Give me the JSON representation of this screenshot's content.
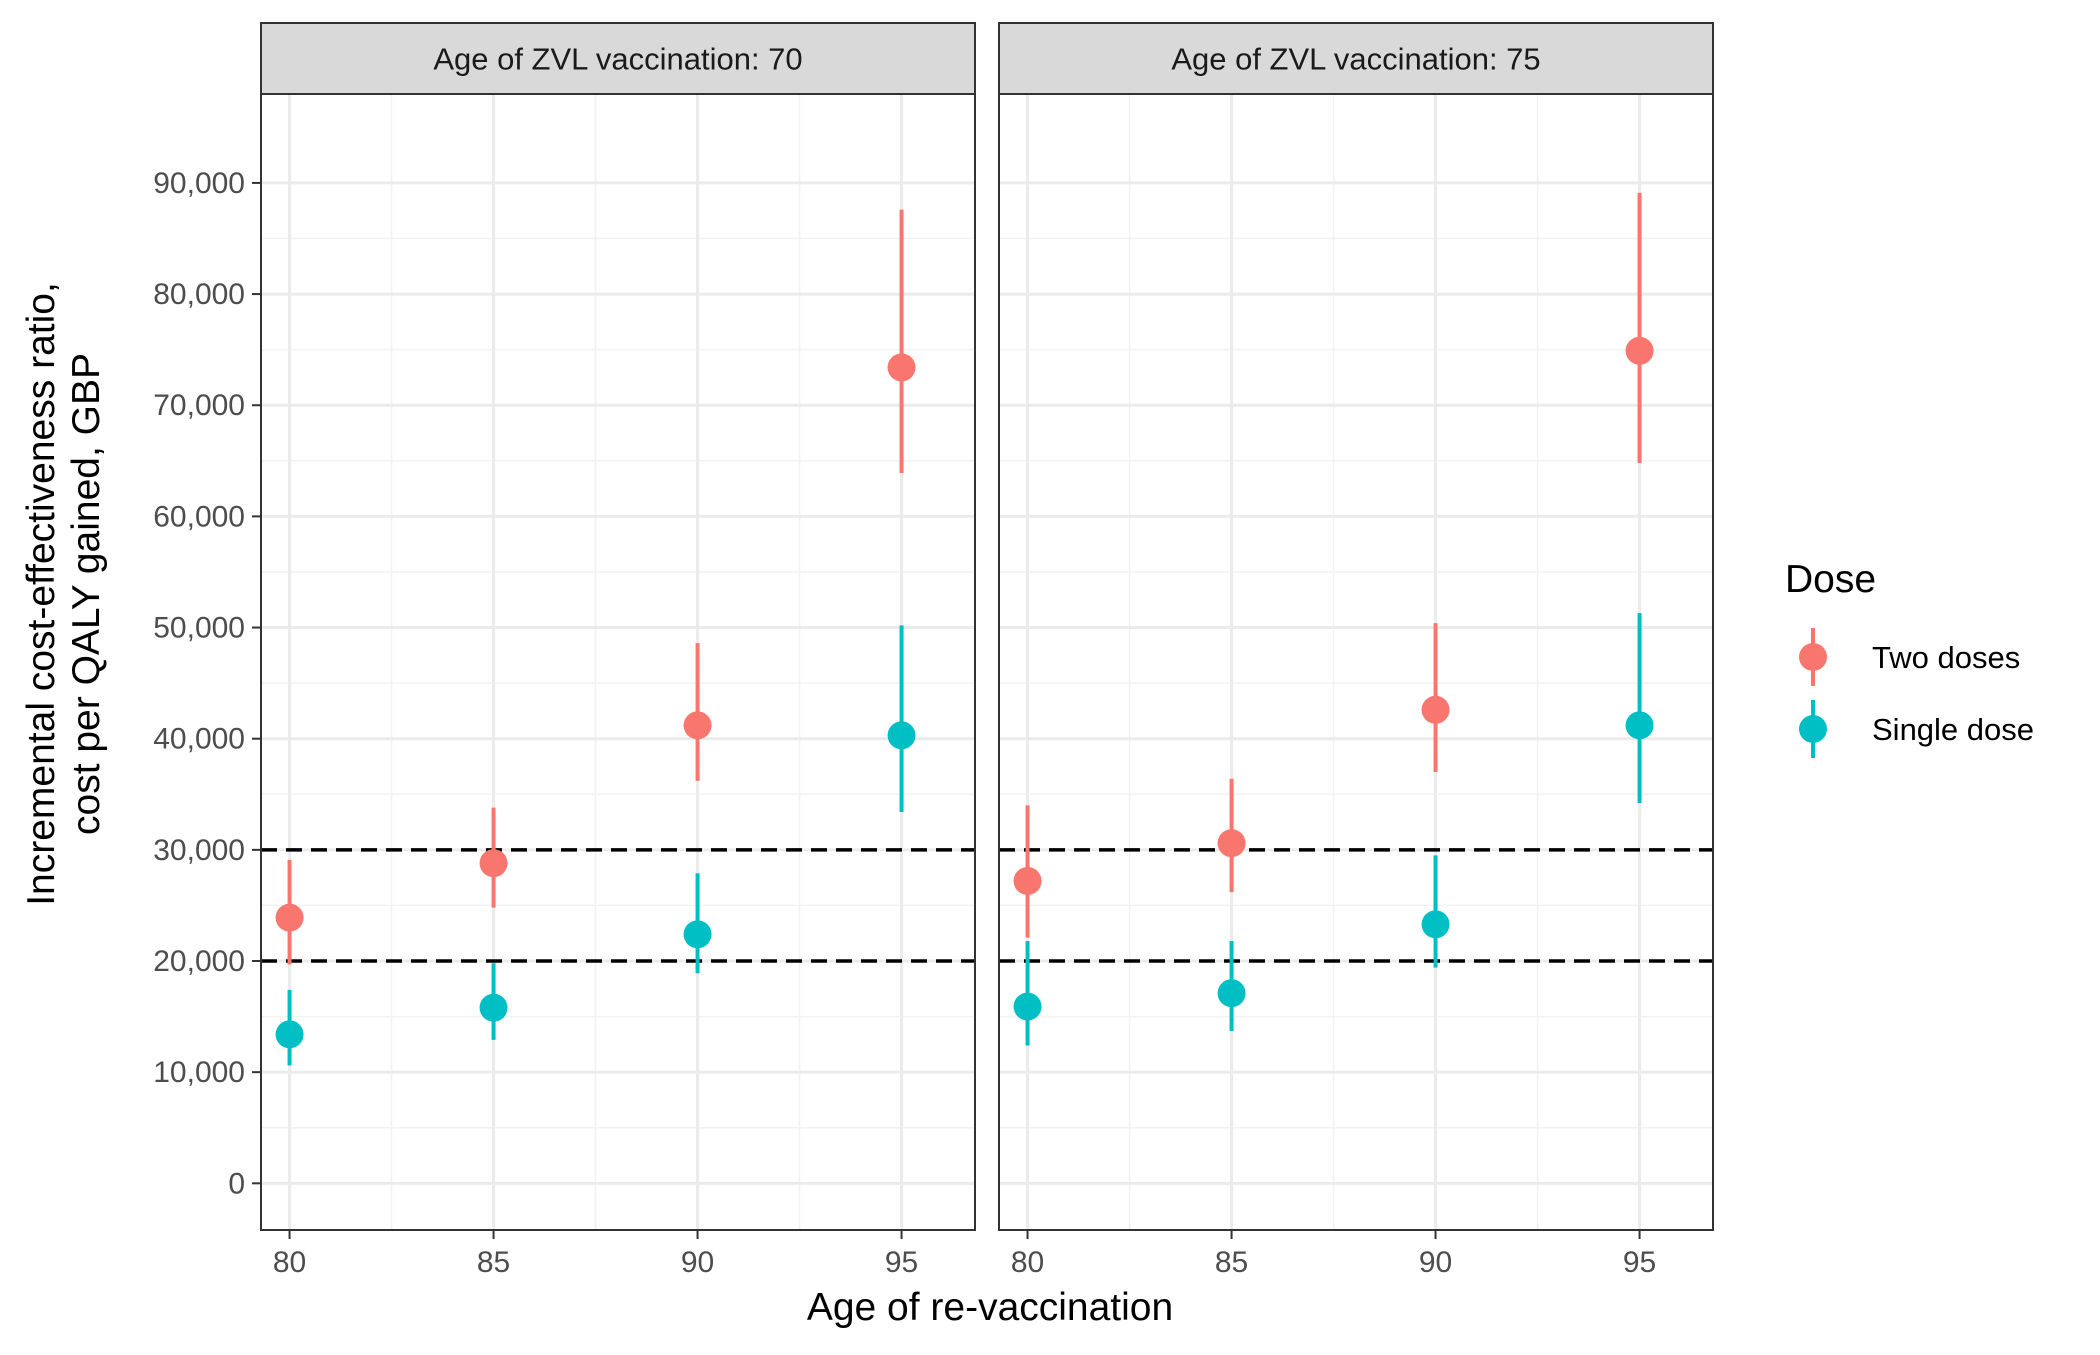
{
  "chart_data": {
    "type": "scatter",
    "subtype": "point-range, faceted",
    "xlabel": "Age of re-vaccination",
    "ylabel_lines": [
      "Incremental cost-effectiveness ratio,",
      "cost per QALY gained, GBP"
    ],
    "x_ticks": [
      "80",
      "85",
      "90",
      "95"
    ],
    "y_ticks": [
      "0",
      "10,000",
      "20,000",
      "30,000",
      "40,000",
      "50,000",
      "60,000",
      "70,000",
      "80,000",
      "90,000"
    ],
    "xlim": [
      79.3,
      96.8
    ],
    "ylim": [
      -4200,
      98000
    ],
    "grid": true,
    "reference_lines": [
      20000,
      30000
    ],
    "legend": {
      "title": "Dose",
      "position": "right",
      "entries": [
        {
          "label": "Two doses",
          "color": "#F8766D"
        },
        {
          "label": "Single dose",
          "color": "#00BFC4"
        }
      ]
    },
    "facets": [
      {
        "label": "Age of ZVL vaccination: 70",
        "series": [
          {
            "name": "Two doses",
            "color": "#F8766D",
            "points": [
              {
                "x": 80,
                "y": 23900,
                "lo": 19700,
                "hi": 29100
              },
              {
                "x": 85,
                "y": 28800,
                "lo": 24800,
                "hi": 33800
              },
              {
                "x": 90,
                "y": 41200,
                "lo": 36200,
                "hi": 48600
              },
              {
                "x": 95,
                "y": 73400,
                "lo": 63900,
                "hi": 87600
              }
            ]
          },
          {
            "name": "Single dose",
            "color": "#00BFC4",
            "points": [
              {
                "x": 80,
                "y": 13400,
                "lo": 10600,
                "hi": 17400
              },
              {
                "x": 85,
                "y": 15800,
                "lo": 12900,
                "hi": 19800
              },
              {
                "x": 90,
                "y": 22400,
                "lo": 18900,
                "hi": 27900
              },
              {
                "x": 95,
                "y": 40300,
                "lo": 33400,
                "hi": 50200
              }
            ]
          }
        ]
      },
      {
        "label": "Age of ZVL vaccination: 75",
        "series": [
          {
            "name": "Two doses",
            "color": "#F8766D",
            "points": [
              {
                "x": 80,
                "y": 27200,
                "lo": 22100,
                "hi": 34000
              },
              {
                "x": 85,
                "y": 30600,
                "lo": 26200,
                "hi": 36400
              },
              {
                "x": 90,
                "y": 42600,
                "lo": 37000,
                "hi": 50400
              },
              {
                "x": 95,
                "y": 74900,
                "lo": 64800,
                "hi": 89100
              }
            ]
          },
          {
            "name": "Single dose",
            "color": "#00BFC4",
            "points": [
              {
                "x": 80,
                "y": 15900,
                "lo": 12400,
                "hi": 21800
              },
              {
                "x": 85,
                "y": 17100,
                "lo": 13700,
                "hi": 21800
              },
              {
                "x": 90,
                "y": 23300,
                "lo": 19400,
                "hi": 29500
              },
              {
                "x": 95,
                "y": 41200,
                "lo": 34200,
                "hi": 51300
              }
            ]
          }
        ]
      }
    ]
  }
}
